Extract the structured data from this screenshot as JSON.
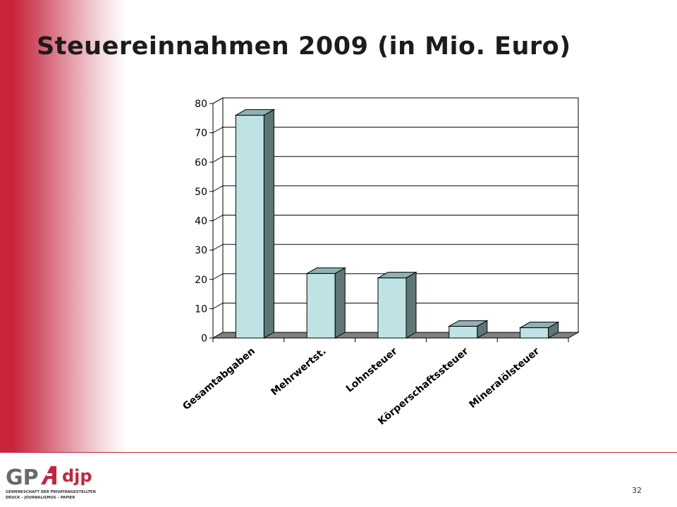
{
  "slide": {
    "title": "Steuereinnahmen 2009 (in Mio. Euro)",
    "page_number": "32",
    "logo": {
      "brand": "GPA",
      "secondary": "djp",
      "tagline_1": "GEWERKSCHAFT DER PRIVATANGESTELLTEN",
      "tagline_2": "DRUCK – JOURNALISMUS – PAPIER"
    }
  },
  "colors": {
    "accent": "#c8243c",
    "bar_front": "#bfe3e5",
    "bar_top": "#8fb1b3",
    "bar_side": "#5f7677",
    "floor": "#808080"
  },
  "chart_data": {
    "type": "bar",
    "title": "",
    "xlabel": "",
    "ylabel": "",
    "categories": [
      "Gesamtabgaben",
      "Mehrwertst.",
      "Lohnsteuer",
      "Körperschaftssteuer",
      "Mineralölsteuer"
    ],
    "values": [
      76,
      22,
      20.5,
      4,
      3.5
    ],
    "ylim": [
      0,
      80
    ],
    "yticks": [
      0,
      10,
      20,
      30,
      40,
      50,
      60,
      70,
      80
    ],
    "grid": true,
    "legend": "none",
    "three_d": true
  }
}
